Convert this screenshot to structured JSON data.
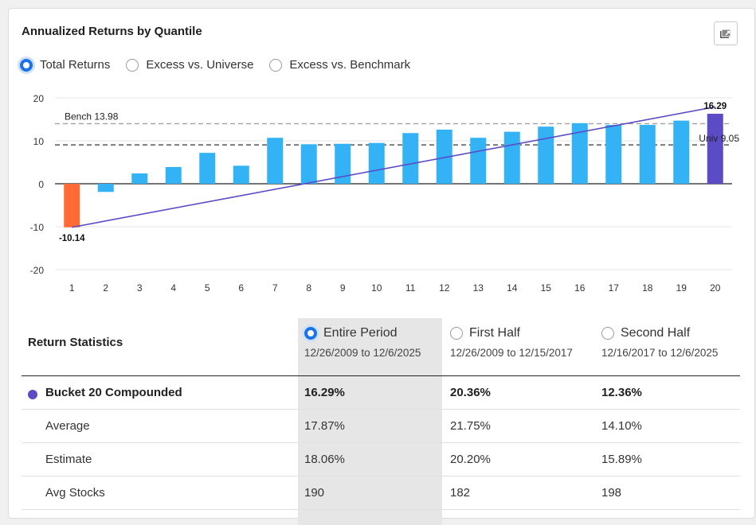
{
  "panel": {
    "title": "Annualized Returns by Quantile"
  },
  "view_options": [
    {
      "label": "Total Returns",
      "selected": true
    },
    {
      "label": "Excess vs. Universe",
      "selected": false
    },
    {
      "label": "Excess vs. Benchmark",
      "selected": false
    }
  ],
  "colors": {
    "positive": "#33b3f5",
    "negative": "#ff6a35",
    "top": "#5b4bc4",
    "trend": "#5b4bc4",
    "accent": "#1a73e8"
  },
  "chart_data": {
    "type": "bar",
    "categories": [
      "1",
      "2",
      "3",
      "4",
      "5",
      "6",
      "7",
      "8",
      "9",
      "10",
      "11",
      "12",
      "13",
      "14",
      "15",
      "16",
      "17",
      "18",
      "19",
      "20"
    ],
    "values": [
      -10.14,
      -1.9,
      2.4,
      3.9,
      7.2,
      4.2,
      10.7,
      9.2,
      9.3,
      9.5,
      11.8,
      12.6,
      10.7,
      12.1,
      13.3,
      14.1,
      13.7,
      13.7,
      14.7,
      16.29
    ],
    "ylim": [
      -20,
      20
    ],
    "yticks": [
      "20",
      "10",
      "0",
      "-10",
      "-20"
    ],
    "data_labels": {
      "first": "-10.14",
      "last": "16.29"
    },
    "reference_lines": [
      {
        "label": "Bench 13.98",
        "value": 13.98
      },
      {
        "label": "Univ 9.05",
        "value": 9.05
      }
    ],
    "trend_line": {
      "from": -10.14,
      "to": 17.9
    },
    "grid": true
  },
  "stats": {
    "title": "Return Statistics",
    "periods": [
      {
        "label": "Entire Period",
        "dates": "12/26/2009 to 12/6/2025",
        "selected": true
      },
      {
        "label": "First Half",
        "dates": "12/26/2009 to 12/15/2017",
        "selected": false
      },
      {
        "label": "Second Half",
        "dates": "12/16/2017 to 12/6/2025",
        "selected": false
      }
    ],
    "rows": [
      {
        "label": "Bucket 20 Compounded",
        "values": [
          "16.29%",
          "20.36%",
          "12.36%"
        ]
      },
      {
        "label": "Average",
        "values": [
          "17.87%",
          "21.75%",
          "14.10%"
        ]
      },
      {
        "label": "Estimate",
        "values": [
          "18.06%",
          "20.20%",
          "15.89%"
        ]
      },
      {
        "label": "Avg Stocks",
        "values": [
          "190",
          "182",
          "198"
        ]
      }
    ]
  }
}
